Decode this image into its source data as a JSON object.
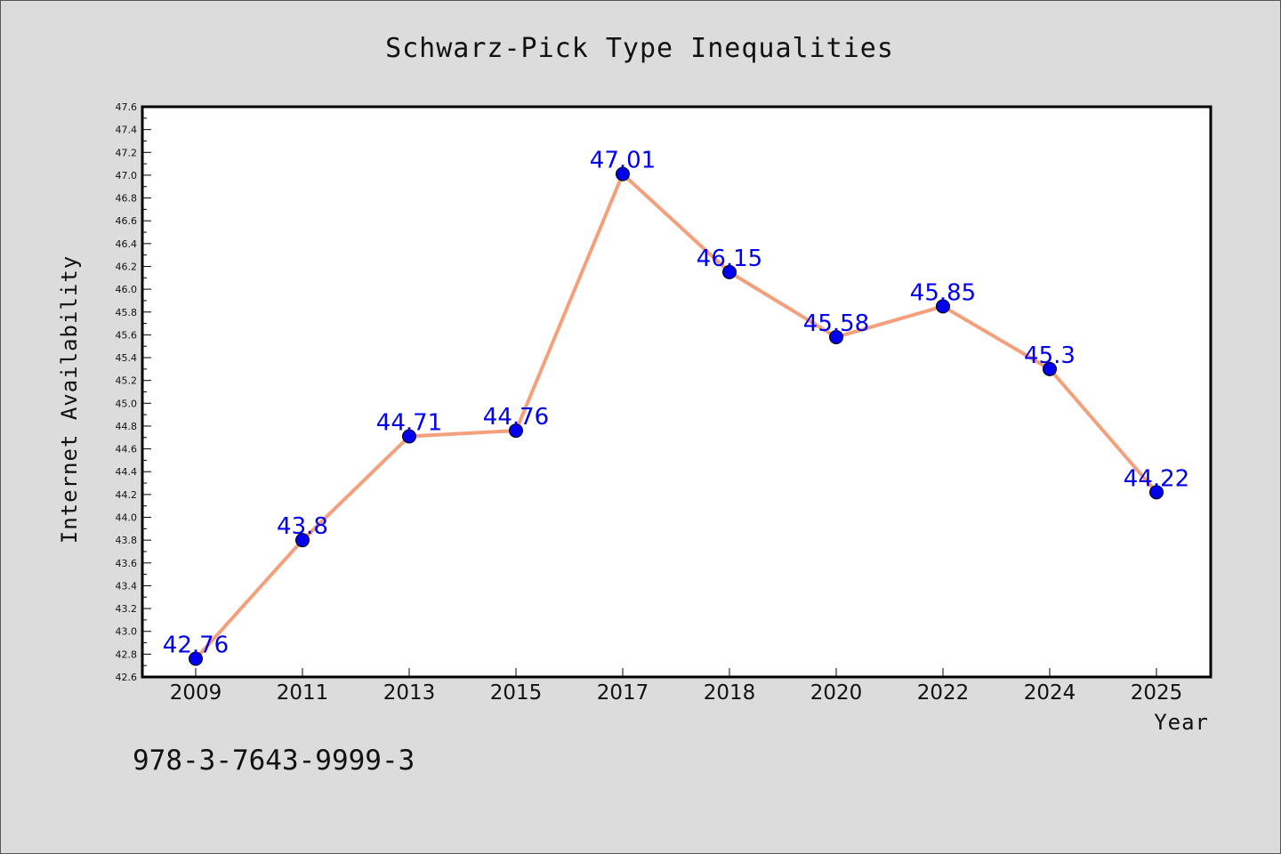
{
  "chart_data": {
    "type": "line",
    "title": "Schwarz-Pick Type Inequalities",
    "xlabel": "Year",
    "ylabel": "Internet Availability",
    "categories": [
      "2009",
      "2011",
      "2013",
      "2015",
      "2017",
      "2018",
      "2020",
      "2022",
      "2024",
      "2025"
    ],
    "series": [
      {
        "values": [
          42.76,
          43.8,
          44.71,
          44.76,
          47.01,
          46.15,
          45.58,
          45.85,
          45.3,
          44.22
        ],
        "labels": [
          "42.76",
          "43.8",
          "44.71",
          "44.76",
          "47.01",
          "46.15",
          "45.58",
          "45.85",
          "45.3",
          "44.22"
        ],
        "line_color": "#f4a07c",
        "marker_color": "#0000ee",
        "label_color": "#0000ee"
      }
    ],
    "ylim": [
      42.6,
      47.6
    ],
    "yticks": [
      "42.6",
      "42.8",
      "43.0",
      "43.2",
      "43.4",
      "43.6",
      "43.8",
      "44.0",
      "44.2",
      "44.4",
      "44.6",
      "44.8",
      "45.0",
      "45.2",
      "45.4",
      "45.6",
      "45.8",
      "46.0",
      "46.2",
      "46.4",
      "46.6",
      "46.8",
      "47.0",
      "47.2",
      "47.4",
      "47.6"
    ],
    "grid": false,
    "legend": "none"
  },
  "footer": {
    "isbn": "978-3-7643-9999-3"
  },
  "colors": {
    "figure_background": "#dcdcdc",
    "plot_background": "#ffffff",
    "axes_frame": "#000000"
  }
}
